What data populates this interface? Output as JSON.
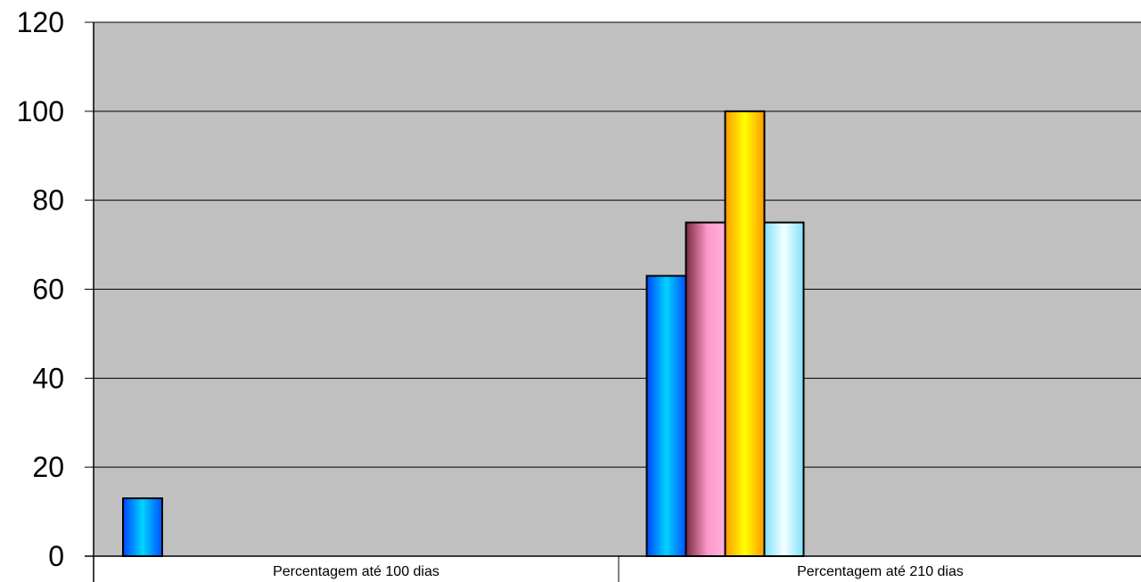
{
  "chart_data": {
    "type": "bar",
    "title": "",
    "xlabel": "",
    "ylabel": "",
    "ylim": [
      0,
      120
    ],
    "yticks": [
      "0",
      "20",
      "40",
      "60",
      "80",
      "100",
      "120"
    ],
    "grid": true,
    "legend": "none",
    "categories": [
      "Percentagem até 100 dias",
      "Percentagem até 210 dias"
    ],
    "series": [
      {
        "color": "#00BFFF",
        "values": [
          13,
          63
        ]
      },
      {
        "color": "#FF99CC",
        "values": [
          null,
          75
        ]
      },
      {
        "color": "#FFD700",
        "values": [
          null,
          100
        ]
      },
      {
        "color": "#CCFFFF",
        "values": [
          null,
          75
        ]
      }
    ],
    "plot_background": "#C0C0C0"
  }
}
